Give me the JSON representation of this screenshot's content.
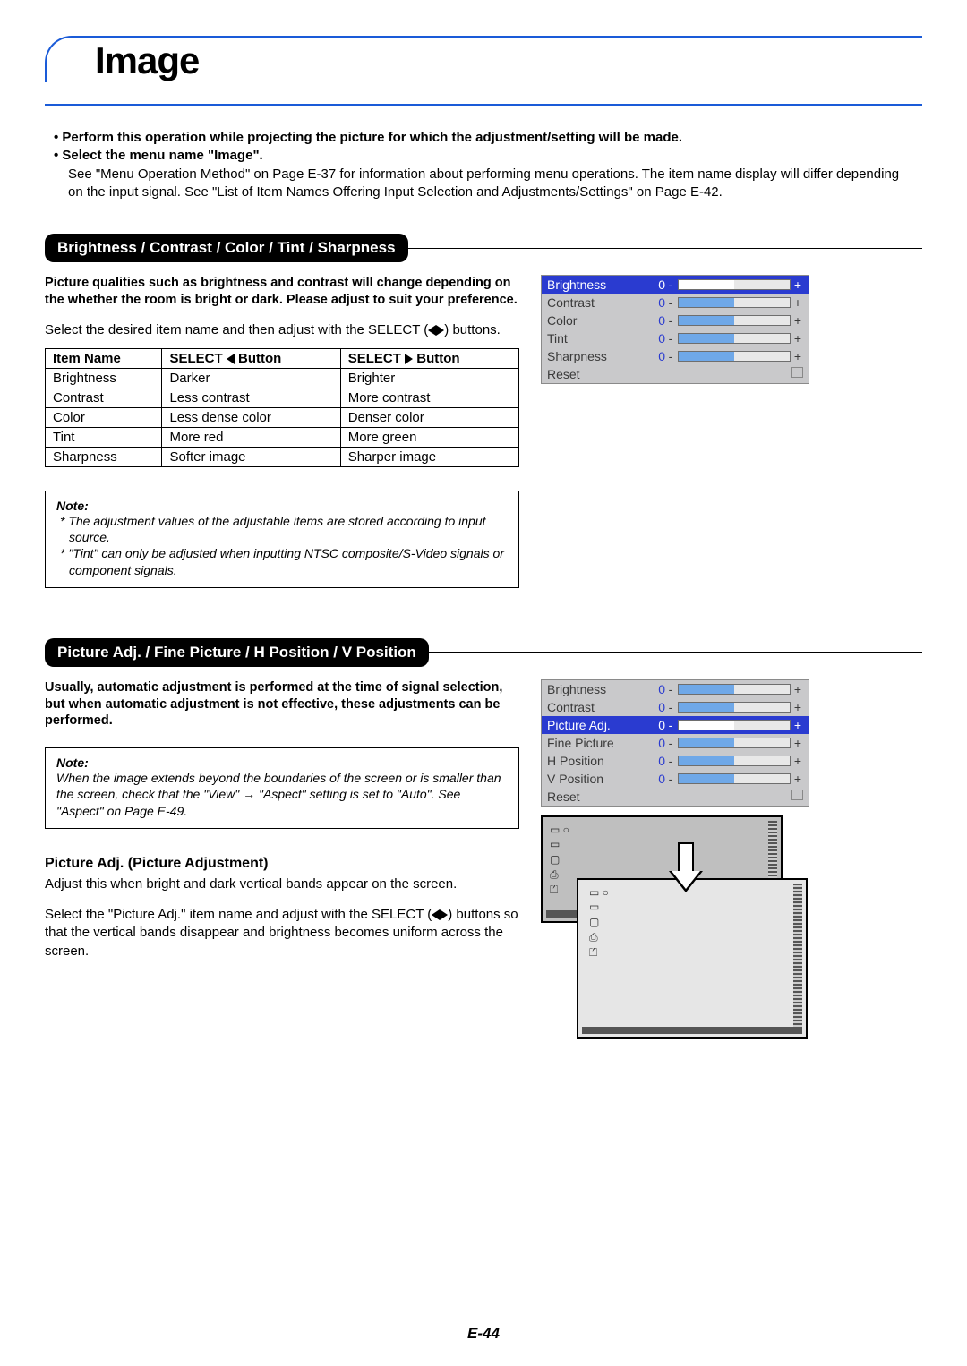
{
  "page": {
    "title": "Image",
    "number": "E-44",
    "accent_color": "#1a5bd8"
  },
  "intro": {
    "b1": "Perform this operation while projecting the picture for which the adjustment/setting will be made.",
    "b2": "Select the menu name \"Image\".",
    "sub": "See \"Menu Operation Method\" on Page E-37 for information about performing menu operations. The item name display will differ depending on the input signal. See \"List of Item Names Offering Input Selection and Adjustments/Settings\" on Page E-42."
  },
  "section1": {
    "title": "Brightness / Contrast / Color / Tint / Sharpness",
    "lead": "Picture qualities such as brightness and contrast will change depending on the whether the room is bright or dark. Please adjust to suit your preference.",
    "instruction_pre": "Select the desired item name and then adjust with the SELECT (",
    "instruction_post": ") buttons.",
    "table": {
      "headers": {
        "c1": "Item Name",
        "c2_pre": "SELECT ",
        "c2_post": " Button",
        "c3_pre": "SELECT ",
        "c3_post": " Button"
      },
      "rows": [
        {
          "c1": "Brightness",
          "c2": "Darker",
          "c3": "Brighter"
        },
        {
          "c1": "Contrast",
          "c2": "Less contrast",
          "c3": "More contrast"
        },
        {
          "c1": "Color",
          "c2": "Less dense color",
          "c3": "Denser color"
        },
        {
          "c1": "Tint",
          "c2": "More red",
          "c3": "More green"
        },
        {
          "c1": "Sharpness",
          "c2": "Softer image",
          "c3": "Sharper image"
        }
      ]
    },
    "note_title": "Note:",
    "note1": "The adjustment values of the adjustable items are stored according to input source.",
    "note2": "\"Tint\" can only be adjusted when inputting NTSC composite/S-Video signals or component signals."
  },
  "osd1": {
    "bg": "#c9c9cb",
    "bar_color": "#6fa8e8",
    "sel_index": 0,
    "rows": [
      {
        "label": "Brightness",
        "value": "0",
        "fill": 50
      },
      {
        "label": "Contrast",
        "value": "0",
        "fill": 50
      },
      {
        "label": "Color",
        "value": "0",
        "fill": 50
      },
      {
        "label": "Tint",
        "value": "0",
        "fill": 50
      },
      {
        "label": "Sharpness",
        "value": "0",
        "fill": 50
      }
    ],
    "reset": "Reset"
  },
  "section2": {
    "title": "Picture Adj. / Fine Picture / H Position / V Position",
    "lead": "Usually, automatic adjustment is performed at the time of signal selection, but when automatic adjustment is not effective, these adjustments can be performed.",
    "note_title": "Note:",
    "note": "When the image extends beyond the boundaries of the screen or is smaller than the screen, check that the \"View\" → \"Aspect\" setting is set to \"Auto\". See \"Aspect\" on Page E-49."
  },
  "osd2": {
    "sel_index": 2,
    "rows": [
      {
        "label": "Brightness",
        "value": "0",
        "fill": 50
      },
      {
        "label": "Contrast",
        "value": "0",
        "fill": 50
      },
      {
        "label": "Picture Adj.",
        "value": "0",
        "fill": 50
      },
      {
        "label": "Fine Picture",
        "value": "0",
        "fill": 50
      },
      {
        "label": "H Position",
        "value": "0",
        "fill": 50
      },
      {
        "label": "V Position",
        "value": "0",
        "fill": 50
      }
    ],
    "reset": "Reset"
  },
  "section3": {
    "title": "Picture Adj. (Picture Adjustment)",
    "p1": "Adjust this when bright and dark vertical bands appear on the screen.",
    "p2_pre": "Select the \"Picture Adj.\" item name and adjust with the SELECT (",
    "p2_post": ") buttons so that the vertical bands disappear and brightness becomes uniform across the screen."
  }
}
